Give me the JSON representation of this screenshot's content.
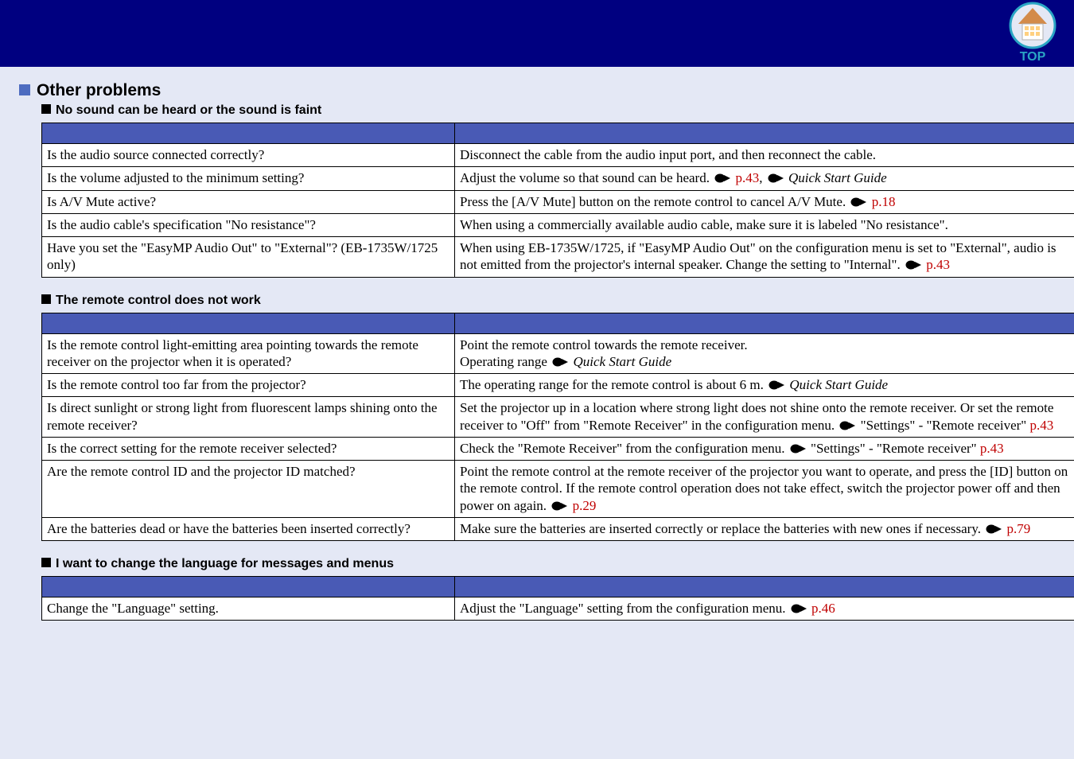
{
  "header": {
    "top_icon_label": "TOP",
    "top_icon_color": "#2aa5c4",
    "top_icon_text_color": "#2aa5c4",
    "top_icon_roof_color": "#d38b4a",
    "top_icon_wall_color": "#ffffff"
  },
  "section": {
    "title": "Other problems"
  },
  "tables": {
    "no_sound": {
      "title": "No sound can be heard or the sound is faint",
      "rows": [
        {
          "check": "Is the audio source connected correctly?",
          "remedy": [
            {
              "t": "text",
              "v": "Disconnect the cable from the audio input port, and then reconnect the cable."
            }
          ]
        },
        {
          "check": "Is the volume adjusted to the minimum setting?",
          "remedy": [
            {
              "t": "text",
              "v": "Adjust the volume so that sound can be heard. "
            },
            {
              "t": "ptr"
            },
            {
              "t": "link",
              "v": "p.43"
            },
            {
              "t": "text",
              "v": ", "
            },
            {
              "t": "ptr"
            },
            {
              "t": "em",
              "v": "Quick Start Guide"
            }
          ]
        },
        {
          "check": "Is A/V Mute active?",
          "remedy": [
            {
              "t": "text",
              "v": "Press the [A/V Mute] button on the remote control to cancel A/V Mute. "
            },
            {
              "t": "ptr"
            },
            {
              "t": "link",
              "v": "p.18"
            }
          ]
        },
        {
          "check": "Is the audio cable's specification \"No resistance\"?",
          "remedy": [
            {
              "t": "text",
              "v": "When using a commercially available audio cable, make sure it is labeled \"No resistance\"."
            }
          ]
        },
        {
          "check": "Have you set the \"EasyMP Audio Out\" to \"External\"? (EB-1735W/1725 only)",
          "remedy": [
            {
              "t": "text",
              "v": "When using EB-1735W/1725, if \"EasyMP Audio Out\" on the configuration menu is set to \"External\", audio is not emitted from the projector's internal speaker. Change the setting to \"Internal\". "
            },
            {
              "t": "ptr"
            },
            {
              "t": "link",
              "v": "p.43"
            }
          ]
        }
      ]
    },
    "remote": {
      "title": "The remote control does not work",
      "rows": [
        {
          "check": "Is the remote control light-emitting area pointing towards the remote receiver on the projector when it is operated?",
          "remedy": [
            {
              "t": "text",
              "v": "Point the remote control towards the remote receiver."
            },
            {
              "t": "br"
            },
            {
              "t": "text",
              "v": "Operating range "
            },
            {
              "t": "ptr"
            },
            {
              "t": "em",
              "v": "Quick Start Guide"
            }
          ]
        },
        {
          "check": "Is the remote control too far from the projector?",
          "remedy": [
            {
              "t": "text",
              "v": "The operating range for the remote control is about 6 m. "
            },
            {
              "t": "ptr"
            },
            {
              "t": "em",
              "v": "Quick Start Guide"
            }
          ]
        },
        {
          "check": "Is direct sunlight or strong light from fluorescent lamps shining onto the remote receiver?",
          "remedy": [
            {
              "t": "text",
              "v": "Set the projector up in a location where strong light does not shine onto the remote receiver. Or set the remote receiver to \"Off\" from \"Remote Receiver\" in the configuration menu. "
            },
            {
              "t": "ptr"
            },
            {
              "t": "text",
              "v": "\"Settings\" - \"Remote receiver\" "
            },
            {
              "t": "link",
              "v": "p.43"
            }
          ]
        },
        {
          "check": "Is the correct setting for the remote receiver selected?",
          "remedy": [
            {
              "t": "text",
              "v": "Check the \"Remote Receiver\" from the configuration menu. "
            },
            {
              "t": "ptr"
            },
            {
              "t": "text",
              "v": "\"Settings\" - \"Remote receiver\" "
            },
            {
              "t": "link",
              "v": "p.43"
            }
          ]
        },
        {
          "check": "Are the remote control ID and the projector ID matched?",
          "remedy": [
            {
              "t": "text",
              "v": "Point the remote control at the remote receiver of the projector you want to operate, and press the [ID] button on the remote control. If the remote control operation does not take effect, switch the projector power off and then power on again. "
            },
            {
              "t": "ptr"
            },
            {
              "t": "link",
              "v": "p.29"
            }
          ]
        },
        {
          "check": "Are the batteries dead or have the batteries been inserted correctly?",
          "remedy": [
            {
              "t": "text",
              "v": "Make sure the batteries are inserted correctly or replace the batteries with new ones if necessary. "
            },
            {
              "t": "ptr"
            },
            {
              "t": "link",
              "v": "p.79"
            }
          ]
        }
      ]
    },
    "language": {
      "title": "I want to change the language for messages and menus",
      "rows": [
        {
          "check": "Change the \"Language\" setting.",
          "remedy": [
            {
              "t": "text",
              "v": "Adjust the \"Language\" setting from the configuration menu. "
            },
            {
              "t": "ptr"
            },
            {
              "t": "link",
              "v": "p.46"
            }
          ]
        }
      ]
    }
  }
}
